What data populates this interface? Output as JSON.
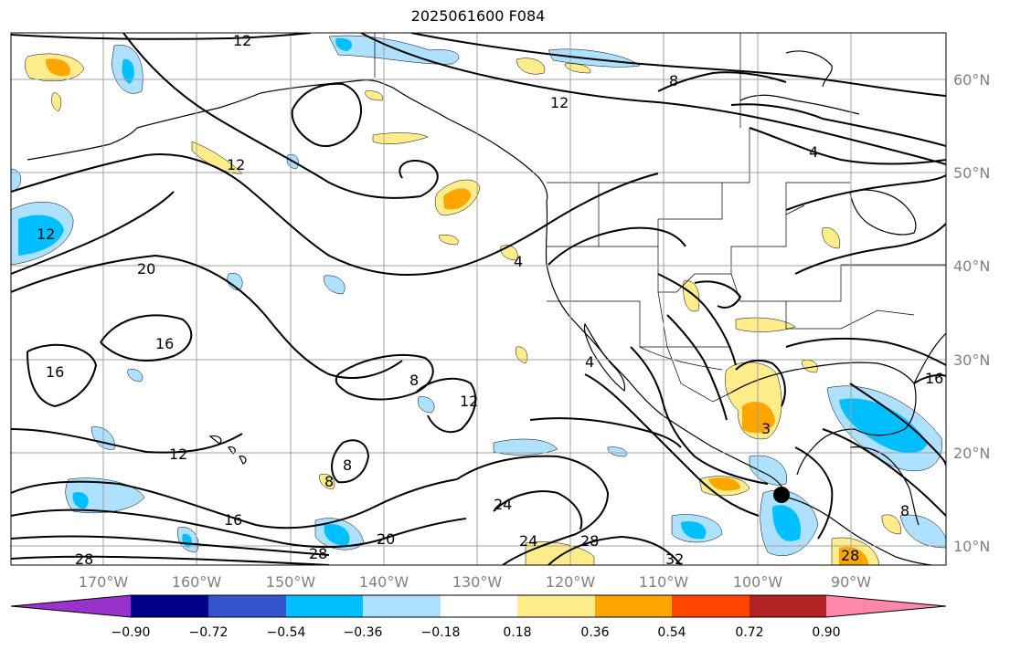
{
  "title": "2025061600 F084",
  "map": {
    "lat_labels": [
      "60°N",
      "50°N",
      "40°N",
      "30°N",
      "20°N",
      "10°N"
    ],
    "lon_labels": [
      "170°W",
      "160°W",
      "150°W",
      "140°W",
      "130°W",
      "120°W",
      "110°W",
      "100°W",
      "90°W"
    ],
    "contour_labels": [
      "12",
      "12",
      "8",
      "12",
      "4",
      "8",
      "12",
      "20",
      "16",
      "16",
      "8",
      "12",
      "12",
      "8",
      "24",
      "28",
      "16",
      "20",
      "28",
      "24",
      "28",
      "32",
      "3",
      "8",
      "16",
      "28",
      "4",
      "4"
    ],
    "marker": "storm-center-dot"
  },
  "colorbar": {
    "ticks": [
      "−0.90",
      "−0.72",
      "−0.54",
      "−0.36",
      "−0.18",
      "0.18",
      "0.36",
      "0.54",
      "0.72",
      "0.90"
    ],
    "colors": [
      "#9932cc",
      "#00008b",
      "#3355cc",
      "#00bfff",
      "#aee0ff",
      "#ffffff",
      "#ffec8b",
      "#ffa500",
      "#ff4500",
      "#b22222",
      "#ff88aa"
    ]
  },
  "colors": {
    "shade_light_blue": "#aee0ff",
    "shade_blue": "#00bfff",
    "shade_yellow": "#ffec8b",
    "shade_orange": "#ffa500"
  }
}
